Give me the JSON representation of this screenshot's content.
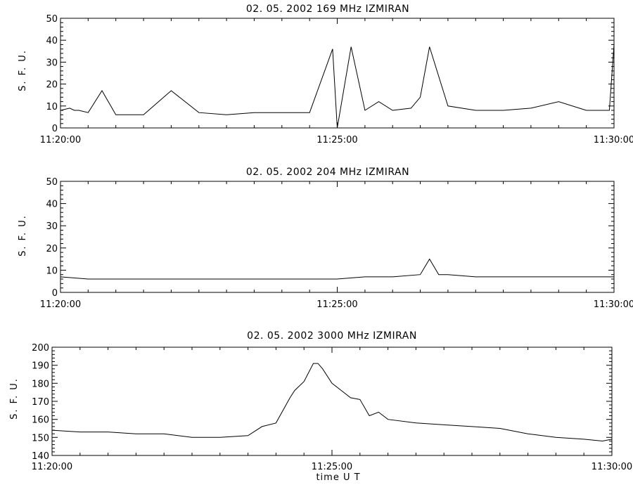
{
  "chart_data": [
    {
      "type": "line",
      "title": "02. 05. 2002   169 MHz   IZMIRAN",
      "ylabel": "S. F. U.",
      "xlabel": "",
      "xlim": [
        "11:20:00",
        "11:30:00"
      ],
      "xticks": [
        "11:20:00",
        "11:25:00",
        "11:30:00"
      ],
      "ylim": [
        0,
        50
      ],
      "yticks": [
        0,
        10,
        20,
        30,
        40,
        50
      ],
      "grid": false,
      "series": [
        {
          "x": [
            "11:20:00",
            "11:20:10",
            "11:20:15",
            "11:20:20",
            "11:20:30",
            "11:20:45",
            "11:21:00",
            "11:21:30",
            "11:22:00",
            "11:22:30",
            "11:23:00",
            "11:23:30",
            "11:24:00",
            "11:24:30",
            "11:24:55",
            "11:25:00",
            "11:25:15",
            "11:25:30",
            "11:25:45",
            "11:26:00",
            "11:26:20",
            "11:26:30",
            "11:26:40",
            "11:27:00",
            "11:27:30",
            "11:28:00",
            "11:28:30",
            "11:29:00",
            "11:29:30",
            "11:29:55",
            "11:30:00"
          ],
          "y": [
            8,
            9,
            8,
            8,
            7,
            17,
            6,
            6,
            17,
            7,
            6,
            7,
            7,
            7,
            36,
            0,
            37,
            8,
            12,
            8,
            9,
            14,
            37,
            10,
            8,
            8,
            9,
            12,
            8,
            8,
            38
          ]
        }
      ]
    },
    {
      "type": "line",
      "title": "02. 05. 2002   204 MHz   IZMIRAN",
      "ylabel": "S. F. U.",
      "xlabel": "",
      "xlim": [
        "11:20:00",
        "11:30:00"
      ],
      "xticks": [
        "11:20:00",
        "11:25:00",
        "11:30:00"
      ],
      "ylim": [
        0,
        50
      ],
      "yticks": [
        0,
        10,
        20,
        30,
        40,
        50
      ],
      "grid": false,
      "series": [
        {
          "x": [
            "11:20:00",
            "11:20:30",
            "11:21:00",
            "11:21:30",
            "11:22:00",
            "11:22:30",
            "11:23:00",
            "11:23:30",
            "11:24:00",
            "11:24:30",
            "11:25:00",
            "11:25:30",
            "11:26:00",
            "11:26:30",
            "11:26:40",
            "11:26:50",
            "11:27:00",
            "11:27:30",
            "11:28:00",
            "11:28:30",
            "11:29:00",
            "11:29:30",
            "11:30:00"
          ],
          "y": [
            7,
            6,
            6,
            6,
            6,
            6,
            6,
            6,
            6,
            6,
            6,
            7,
            7,
            8,
            15,
            8,
            8,
            7,
            7,
            7,
            7,
            7,
            7
          ]
        }
      ]
    },
    {
      "type": "line",
      "title": "02. 05. 2002   3000 MHz   IZMIRAN",
      "ylabel": "S. F. U.",
      "xlabel": "time  U T",
      "xlim": [
        "11:20:00",
        "11:30:00"
      ],
      "xticks": [
        "11:20:00",
        "11:25:00",
        "11:30:00"
      ],
      "ylim": [
        140,
        200
      ],
      "yticks": [
        140,
        150,
        160,
        170,
        180,
        190,
        200
      ],
      "grid": false,
      "series": [
        {
          "x": [
            "11:20:00",
            "11:20:30",
            "11:21:00",
            "11:21:30",
            "11:22:00",
            "11:22:30",
            "11:23:00",
            "11:23:30",
            "11:23:45",
            "11:24:00",
            "11:24:15",
            "11:24:20",
            "11:24:30",
            "11:24:40",
            "11:24:45",
            "11:24:50",
            "11:25:00",
            "11:25:10",
            "11:25:20",
            "11:25:30",
            "11:25:40",
            "11:25:50",
            "11:26:00",
            "11:26:30",
            "11:27:00",
            "11:27:30",
            "11:28:00",
            "11:28:30",
            "11:29:00",
            "11:29:30",
            "11:29:50",
            "11:30:00"
          ],
          "y": [
            154,
            153,
            153,
            152,
            152,
            150,
            150,
            151,
            156,
            158,
            172,
            176,
            181,
            191,
            191,
            188,
            180,
            176,
            172,
            171,
            162,
            164,
            160,
            158,
            157,
            156,
            155,
            152,
            150,
            149,
            148,
            149
          ]
        }
      ]
    }
  ]
}
